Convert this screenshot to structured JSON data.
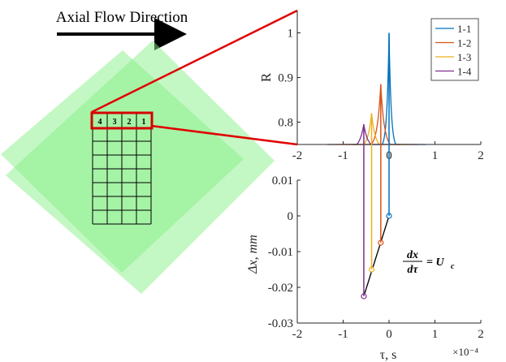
{
  "title": "Axial Flow Direction",
  "grid_cells": [
    "4",
    "3",
    "2",
    "1"
  ],
  "colors": {
    "c1": "#0072BD",
    "c2": "#D95319",
    "c3": "#EDB120",
    "c4": "#7E2F8E",
    "highlight": "#d40000",
    "sheet": "#88f088"
  },
  "chart_data": [
    {
      "type": "line",
      "panel": "top",
      "ylabel": "R",
      "xlim": [
        -2,
        2
      ],
      "ylim": [
        0.75,
        1.05
      ],
      "x_ticks": [
        "-2",
        "-1",
        "0",
        "1",
        "2"
      ],
      "y_ticks": [
        "0.8",
        "0.9",
        "1"
      ],
      "x_tick_values": [
        -2,
        -1,
        0,
        1,
        2
      ],
      "y_tick_values": [
        0.8,
        0.9,
        1.0
      ],
      "legend": [
        "1-1",
        "1-2",
        "1-3",
        "1-4"
      ],
      "legend_position": "top-right",
      "series": [
        {
          "name": "1-1",
          "peak_x": 0.0,
          "peak_y": 1.0,
          "width": 0.1
        },
        {
          "name": "1-2",
          "peak_x": -0.18,
          "peak_y": 0.885,
          "width": 0.17
        },
        {
          "name": "1-3",
          "peak_x": -0.38,
          "peak_y": 0.82,
          "width": 0.18
        },
        {
          "name": "1-4",
          "peak_x": -0.55,
          "peak_y": 0.795,
          "width": 0.2
        }
      ]
    },
    {
      "type": "scatter",
      "panel": "bottom",
      "ylabel": "Δx, mm",
      "xlabel": "τ, s",
      "exponent": "×10⁻⁴",
      "xlim": [
        -2,
        2
      ],
      "ylim": [
        -0.03,
        0.01
      ],
      "x_ticks": [
        "-2",
        "-1",
        "0",
        "1",
        "2"
      ],
      "y_ticks": [
        "0.01",
        "0",
        "-0.01",
        "-0.02",
        "-0.03"
      ],
      "x_tick_values": [
        -2,
        -1,
        0,
        1,
        2
      ],
      "y_tick_values": [
        0.01,
        0,
        -0.01,
        -0.02,
        -0.03
      ],
      "points": [
        {
          "name": "1-1",
          "x": 0.0,
          "y": 0.0
        },
        {
          "name": "1-2",
          "x": -0.18,
          "y": -0.0075
        },
        {
          "name": "1-3",
          "x": -0.38,
          "y": -0.015
        },
        {
          "name": "1-4",
          "x": -0.55,
          "y": -0.0225
        }
      ],
      "annotation_num": "dx",
      "annotation_den": "dτ",
      "annotation_rhs": "= U",
      "annotation_sub": "c"
    }
  ]
}
